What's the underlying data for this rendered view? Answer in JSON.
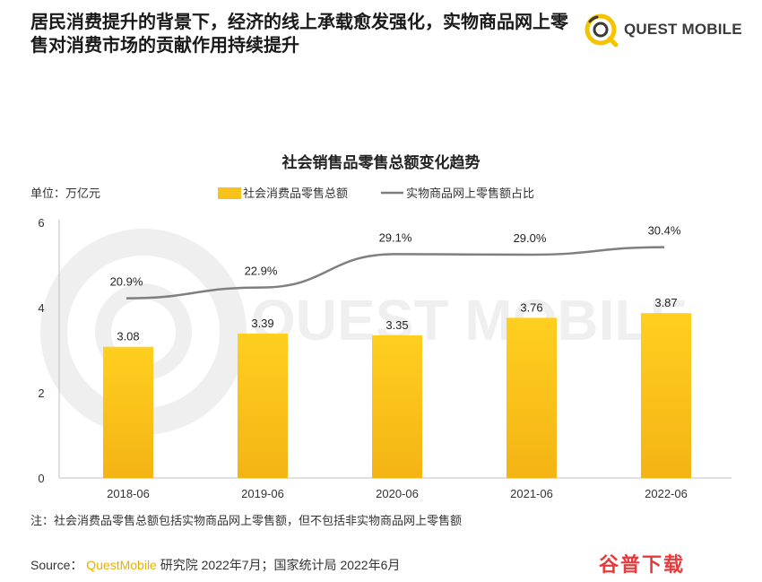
{
  "headline": "居民消费提升的背景下，经济的线上承载愈发强化，实物商品网上零售对消费市场的贡献作用持续提升",
  "logo": {
    "text": "QUEST MOBILE",
    "icon": "quest-mobile-logo-icon",
    "brand_color": "#f5c400"
  },
  "watermark": {
    "text": "QUEST MOBILE"
  },
  "chart_data": {
    "type": "bar",
    "title": "社会销售品零售总额变化趋势",
    "unit_label": "单位：万亿元",
    "categories": [
      "2018-06",
      "2019-06",
      "2020-06",
      "2021-06",
      "2022-06"
    ],
    "series": [
      {
        "name": "社会消费品零售总额",
        "kind": "bar",
        "values": [
          3.08,
          3.39,
          3.35,
          3.76,
          3.87
        ],
        "value_labels": [
          "3.08",
          "3.39",
          "3.35",
          "3.76",
          "3.87"
        ],
        "color": "#f7c31a"
      },
      {
        "name": "实物商品网上零售额占比",
        "kind": "line",
        "values": [
          20.9,
          22.9,
          29.1,
          29.0,
          30.4
        ],
        "value_labels": [
          "20.9%",
          "22.9%",
          "29.1%",
          "29.0%",
          "30.4%"
        ],
        "color": "#7f7f7f"
      }
    ],
    "y_ticks": [
      "0",
      "2",
      "4",
      "6"
    ],
    "ylim": [
      0,
      6
    ],
    "legend_position": "top-center",
    "grid": false
  },
  "footnote": "注：社会消费品零售总额包括实物商品网上零售额，但不包括非实物商品网上零售额",
  "source": {
    "prefix": "Source：",
    "brand": "QuestMobile",
    "rest": "研究院 2022年7月；国家统计局 2022年6月"
  },
  "stamp": "谷普下载"
}
